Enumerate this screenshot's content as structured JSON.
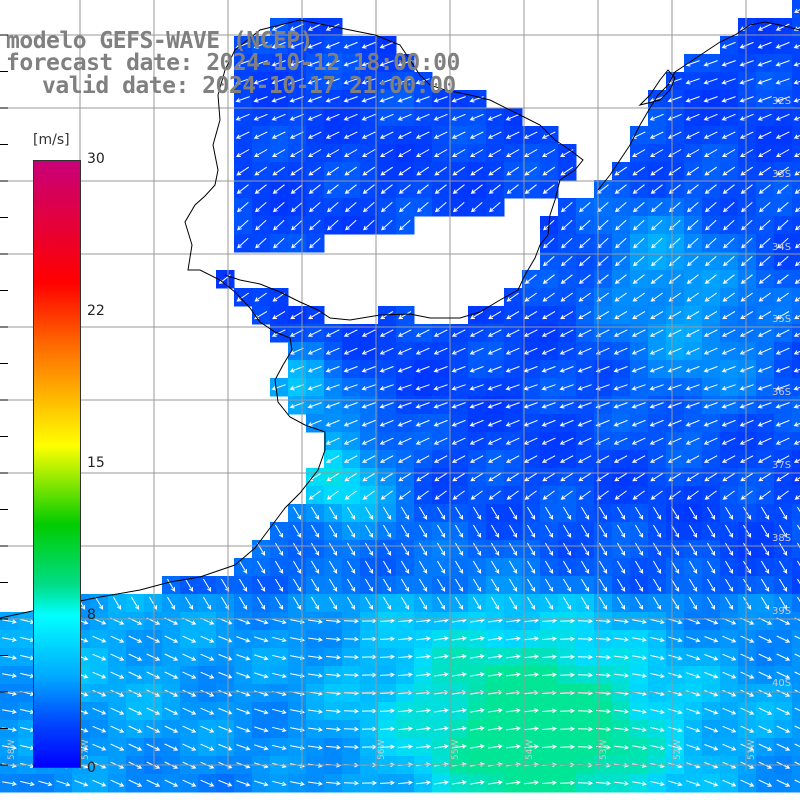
{
  "title": {
    "line1": "modelo GEFS-WAVE (NCEP)",
    "line2": "forecast date: 2024-10-12 18:00:00",
    "line3": "valid date: 2024-10-17 21:00:00"
  },
  "colorbar": {
    "unit": "[m/s]",
    "ticks": [
      "30",
      "22",
      "15",
      "8",
      "0"
    ],
    "tick_values": [
      30,
      22,
      15,
      8,
      0
    ],
    "colors": [
      "#c80078",
      "#ff0000",
      "#ff6600",
      "#ffff00",
      "#00cc00",
      "#00ffff",
      "#0044ff",
      "#0000ff"
    ]
  },
  "lat_labels": [
    "32S",
    "33S",
    "34S",
    "35S",
    "36S",
    "37S",
    "38S",
    "39S",
    "40S"
  ],
  "lon_labels": [
    "58W",
    "57W",
    "56W",
    "55W",
    "54W",
    "53W",
    "52W",
    "51W"
  ],
  "colors": {
    "land": "#ffffff",
    "coast": "#000000",
    "grid": "#999999",
    "arrow": "#ffffff",
    "title": "#808080"
  }
}
